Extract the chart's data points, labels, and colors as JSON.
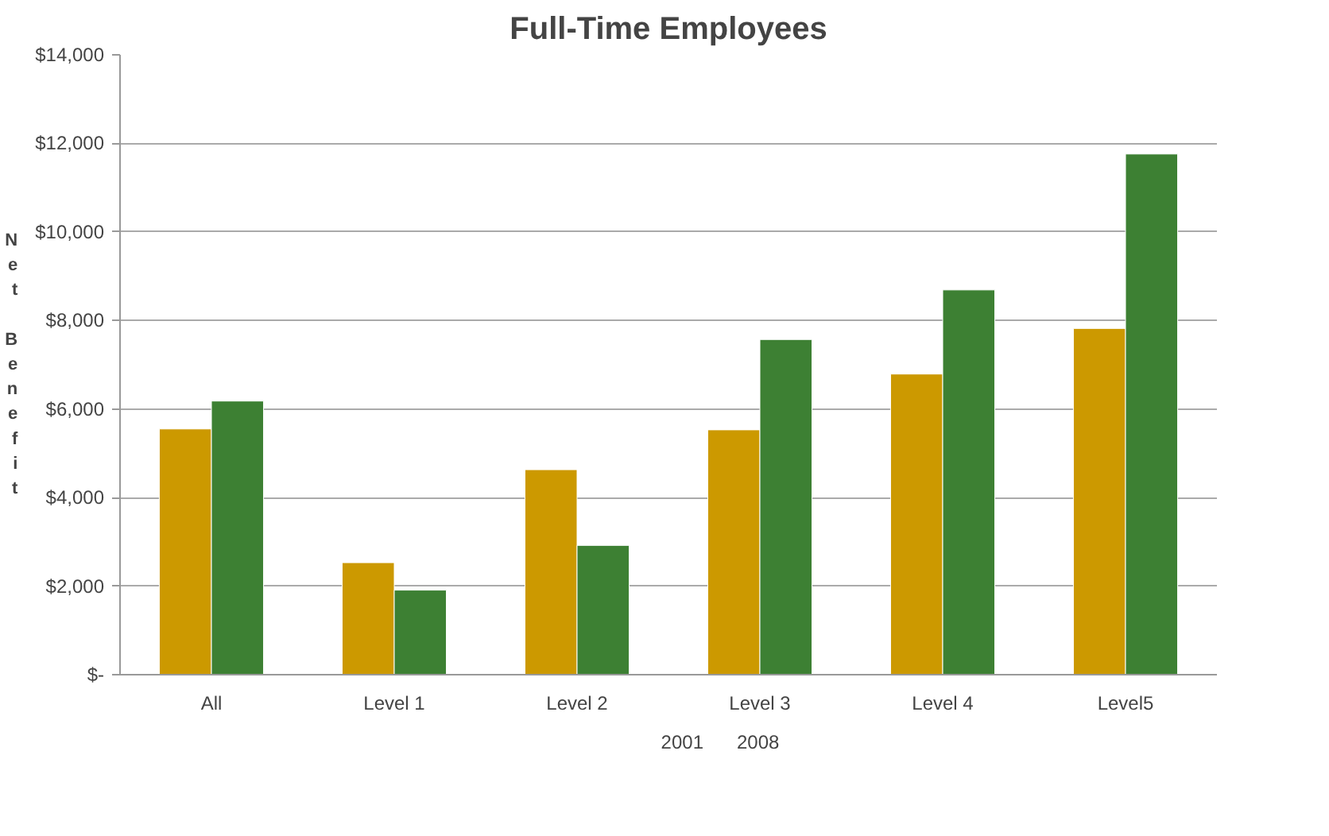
{
  "chart_data": {
    "type": "bar",
    "title": "Full-Time Employees",
    "ylabel": "Net Benefit",
    "categories": [
      "All",
      "Level 1",
      "Level 2",
      "Level 3",
      "Level 4",
      "Level5"
    ],
    "series": [
      {
        "name": "2001",
        "color": "#cc9900",
        "values": [
          5550,
          2530,
          4630,
          5530,
          6790,
          7820
        ]
      },
      {
        "name": "2008",
        "color": "#3d8033",
        "values": [
          6180,
          1910,
          2920,
          7570,
          8690,
          11760
        ]
      }
    ],
    "ylim": [
      0,
      14000
    ],
    "yticks": [
      {
        "value": 0,
        "label": "$-"
      },
      {
        "value": 2000,
        "label": "$2,000"
      },
      {
        "value": 4000,
        "label": "$4,000"
      },
      {
        "value": 6000,
        "label": "$6,000"
      },
      {
        "value": 8000,
        "label": "$8,000"
      },
      {
        "value": 10000,
        "label": "$10,000"
      },
      {
        "value": 12000,
        "label": "$12,000"
      },
      {
        "value": 14000,
        "label": "$14,000"
      }
    ],
    "grid": "y",
    "legend": "bottom"
  }
}
